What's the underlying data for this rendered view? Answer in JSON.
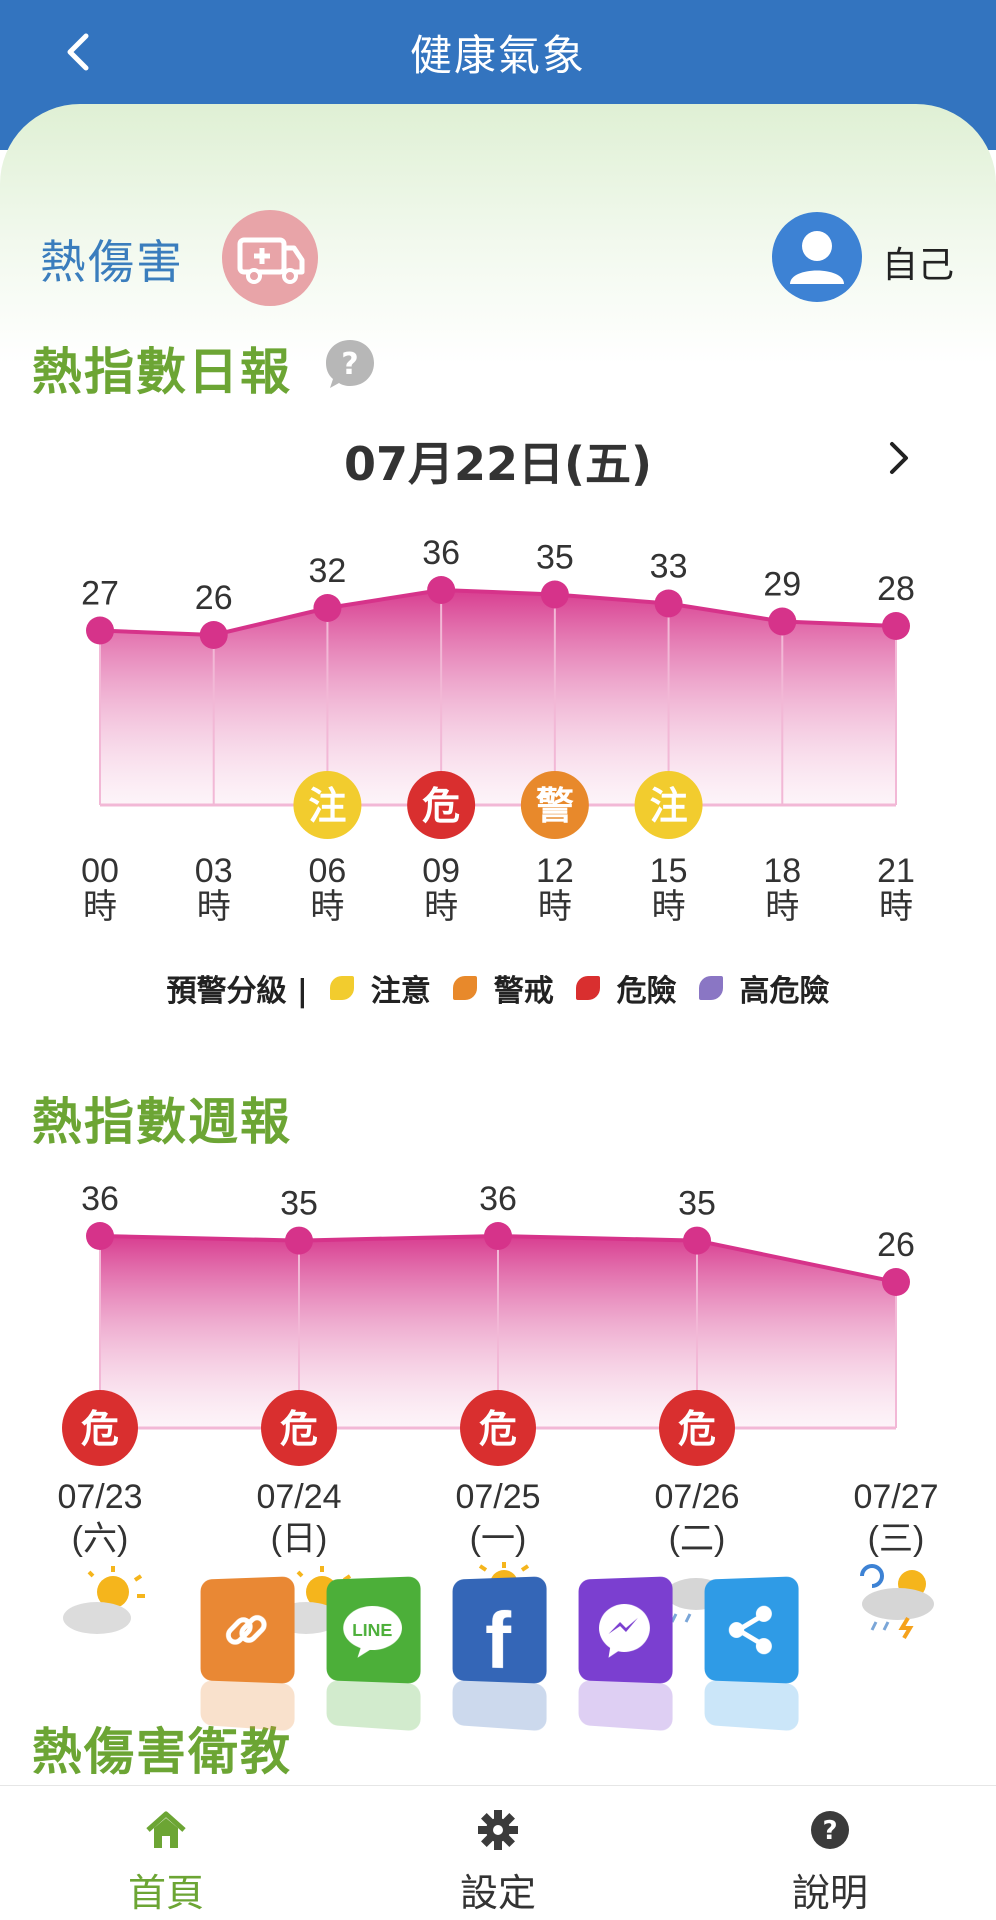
{
  "header": {
    "title": "健康氣象"
  },
  "profile": {
    "hazard": "熱傷害",
    "user": "自己"
  },
  "daily": {
    "title": "熱指數日報",
    "date": "07月22日(五)"
  },
  "legend": {
    "title": "預警分級 |",
    "items": [
      {
        "label": "注意",
        "color": "#f2cc2e"
      },
      {
        "label": "警戒",
        "color": "#e8892b"
      },
      {
        "label": "危險",
        "color": "#d92f2f"
      },
      {
        "label": "高危險",
        "color": "#8a76c4"
      }
    ]
  },
  "weekly": {
    "title": "熱指數週報"
  },
  "education": {
    "title": "熱傷害衛教"
  },
  "share": {
    "items": [
      {
        "name": "copy-link",
        "color": "#e98834"
      },
      {
        "name": "line",
        "label": "LINE",
        "color": "#4caf39"
      },
      {
        "name": "facebook",
        "label": "f",
        "color": "#3466b7"
      },
      {
        "name": "messenger",
        "color": "#7b3fd0"
      },
      {
        "name": "share",
        "color": "#2f9be6"
      }
    ]
  },
  "nav": {
    "items": [
      {
        "label": "首頁",
        "icon": "home-icon",
        "active": true
      },
      {
        "label": "設定",
        "icon": "gear-icon",
        "active": false
      },
      {
        "label": "說明",
        "icon": "help-icon",
        "active": false
      }
    ]
  },
  "colors": {
    "primary": "#3374bf",
    "accent_green": "#6ca534",
    "chart_line": "#d6338a"
  },
  "chart_data": [
    {
      "type": "area",
      "x": [
        "00",
        "03",
        "06",
        "09",
        "12",
        "15",
        "18",
        "21"
      ],
      "x_suffix": "時",
      "values": [
        27,
        26,
        32,
        36,
        35,
        33,
        29,
        28
      ],
      "warnings": [
        "",
        "",
        "注",
        "危",
        "警",
        "注",
        "",
        ""
      ],
      "warning_colors": {
        "注": "#f2cc2e",
        "警": "#e8892b",
        "危": "#d92f2f"
      }
    },
    {
      "type": "area",
      "x": [
        "07/23",
        "07/24",
        "07/25",
        "07/26",
        "07/27"
      ],
      "weekdays": [
        "(六)",
        "(日)",
        "(一)",
        "(二)",
        "(三)"
      ],
      "weather_icons": [
        "partly-sunny-icon",
        "partly-sunny-icon",
        "partly-sunny-icon",
        "cloudy-rain-icon",
        "thunderstorm-icon"
      ],
      "values": [
        36,
        35,
        36,
        35,
        26
      ],
      "warnings": [
        "危",
        "危",
        "危",
        "危",
        ""
      ],
      "warning_colors": {
        "危": "#d92f2f"
      }
    }
  ]
}
